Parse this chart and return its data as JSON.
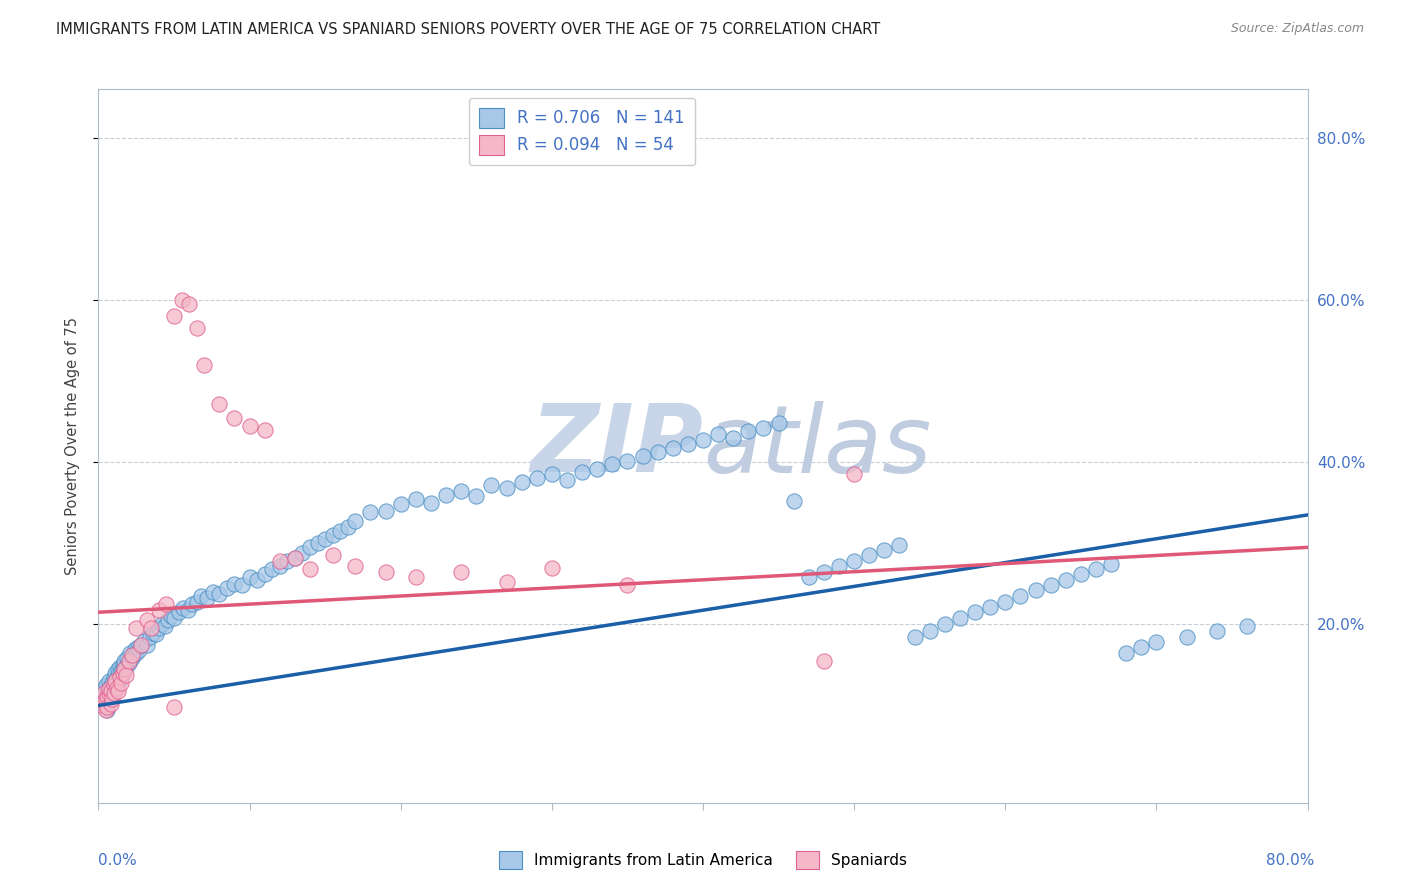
{
  "title": "IMMIGRANTS FROM LATIN AMERICA VS SPANIARD SENIORS POVERTY OVER THE AGE OF 75 CORRELATION CHART",
  "source": "Source: ZipAtlas.com",
  "ylabel": "Seniors Poverty Over the Age of 75",
  "legend_label1": "Immigrants from Latin America",
  "legend_label2": "Spaniards",
  "R1": 0.706,
  "N1": 141,
  "R2": 0.094,
  "N2": 54,
  "color_blue": "#a8c8e8",
  "color_blue_edge": "#4a90c4",
  "color_pink": "#f4b8c8",
  "color_pink_edge": "#e06090",
  "color_blue_line": "#1a5fa8",
  "color_pink_line": "#e05878",
  "watermark_color1": "#c8d4e8",
  "watermark_color2": "#c0cce0",
  "grid_color": "#c8cfd8",
  "axis_color": "#b0bbc8",
  "xlim": [
    0.0,
    0.8
  ],
  "ylim": [
    -0.02,
    0.86
  ],
  "blue_scatter_x": [
    0.002,
    0.003,
    0.003,
    0.004,
    0.004,
    0.005,
    0.005,
    0.005,
    0.006,
    0.006,
    0.006,
    0.007,
    0.007,
    0.007,
    0.008,
    0.008,
    0.008,
    0.009,
    0.009,
    0.009,
    0.01,
    0.01,
    0.01,
    0.011,
    0.011,
    0.012,
    0.012,
    0.013,
    0.013,
    0.014,
    0.014,
    0.015,
    0.015,
    0.016,
    0.016,
    0.017,
    0.018,
    0.019,
    0.02,
    0.021,
    0.022,
    0.023,
    0.024,
    0.025,
    0.026,
    0.027,
    0.028,
    0.03,
    0.032,
    0.034,
    0.036,
    0.038,
    0.04,
    0.042,
    0.044,
    0.046,
    0.048,
    0.05,
    0.053,
    0.056,
    0.059,
    0.062,
    0.065,
    0.068,
    0.072,
    0.076,
    0.08,
    0.085,
    0.09,
    0.095,
    0.1,
    0.105,
    0.11,
    0.115,
    0.12,
    0.125,
    0.13,
    0.135,
    0.14,
    0.145,
    0.15,
    0.155,
    0.16,
    0.165,
    0.17,
    0.18,
    0.19,
    0.2,
    0.21,
    0.22,
    0.23,
    0.24,
    0.25,
    0.26,
    0.27,
    0.28,
    0.29,
    0.3,
    0.31,
    0.32,
    0.33,
    0.34,
    0.35,
    0.36,
    0.37,
    0.38,
    0.39,
    0.4,
    0.41,
    0.42,
    0.43,
    0.44,
    0.45,
    0.46,
    0.47,
    0.48,
    0.49,
    0.5,
    0.51,
    0.52,
    0.53,
    0.54,
    0.55,
    0.56,
    0.57,
    0.58,
    0.59,
    0.6,
    0.61,
    0.62,
    0.63,
    0.64,
    0.65,
    0.66,
    0.67,
    0.68,
    0.69,
    0.7,
    0.72,
    0.74,
    0.76
  ],
  "blue_scatter_y": [
    0.1,
    0.115,
    0.105,
    0.12,
    0.11,
    0.125,
    0.108,
    0.112,
    0.118,
    0.095,
    0.105,
    0.13,
    0.115,
    0.108,
    0.125,
    0.118,
    0.112,
    0.122,
    0.11,
    0.128,
    0.135,
    0.118,
    0.125,
    0.13,
    0.14,
    0.135,
    0.128,
    0.138,
    0.145,
    0.132,
    0.148,
    0.142,
    0.135,
    0.15,
    0.145,
    0.155,
    0.148,
    0.158,
    0.152,
    0.165,
    0.158,
    0.162,
    0.17,
    0.165,
    0.172,
    0.168,
    0.175,
    0.18,
    0.175,
    0.185,
    0.19,
    0.188,
    0.195,
    0.2,
    0.198,
    0.205,
    0.21,
    0.208,
    0.215,
    0.22,
    0.218,
    0.225,
    0.228,
    0.235,
    0.232,
    0.24,
    0.238,
    0.245,
    0.25,
    0.248,
    0.258,
    0.255,
    0.262,
    0.268,
    0.272,
    0.278,
    0.282,
    0.288,
    0.295,
    0.3,
    0.305,
    0.31,
    0.315,
    0.32,
    0.328,
    0.338,
    0.34,
    0.348,
    0.355,
    0.35,
    0.36,
    0.365,
    0.358,
    0.372,
    0.368,
    0.375,
    0.38,
    0.385,
    0.378,
    0.388,
    0.392,
    0.398,
    0.402,
    0.408,
    0.412,
    0.418,
    0.422,
    0.428,
    0.435,
    0.43,
    0.438,
    0.442,
    0.448,
    0.352,
    0.258,
    0.265,
    0.272,
    0.278,
    0.285,
    0.292,
    0.298,
    0.185,
    0.192,
    0.2,
    0.208,
    0.215,
    0.222,
    0.228,
    0.235,
    0.242,
    0.248,
    0.255,
    0.262,
    0.268,
    0.275,
    0.165,
    0.172,
    0.178,
    0.185,
    0.192,
    0.198
  ],
  "pink_scatter_x": [
    0.002,
    0.003,
    0.004,
    0.004,
    0.005,
    0.005,
    0.006,
    0.006,
    0.007,
    0.007,
    0.008,
    0.008,
    0.009,
    0.01,
    0.01,
    0.011,
    0.012,
    0.013,
    0.014,
    0.015,
    0.016,
    0.017,
    0.018,
    0.02,
    0.022,
    0.025,
    0.028,
    0.032,
    0.035,
    0.04,
    0.045,
    0.05,
    0.055,
    0.06,
    0.065,
    0.07,
    0.08,
    0.09,
    0.1,
    0.11,
    0.12,
    0.13,
    0.14,
    0.155,
    0.17,
    0.19,
    0.21,
    0.24,
    0.27,
    0.3,
    0.35,
    0.5,
    0.48,
    0.05
  ],
  "pink_scatter_y": [
    0.1,
    0.11,
    0.115,
    0.105,
    0.095,
    0.108,
    0.112,
    0.098,
    0.115,
    0.12,
    0.102,
    0.118,
    0.108,
    0.125,
    0.115,
    0.13,
    0.122,
    0.118,
    0.135,
    0.128,
    0.14,
    0.145,
    0.138,
    0.155,
    0.162,
    0.195,
    0.175,
    0.205,
    0.195,
    0.218,
    0.225,
    0.58,
    0.6,
    0.595,
    0.565,
    0.52,
    0.472,
    0.455,
    0.445,
    0.44,
    0.278,
    0.282,
    0.268,
    0.285,
    0.272,
    0.265,
    0.258,
    0.265,
    0.252,
    0.27,
    0.248,
    0.385,
    0.155,
    0.098
  ],
  "blue_trend_x": [
    0.0,
    0.8
  ],
  "blue_trend_y": [
    0.1,
    0.335
  ],
  "pink_trend_x": [
    0.0,
    0.8
  ],
  "pink_trend_y": [
    0.215,
    0.295
  ]
}
